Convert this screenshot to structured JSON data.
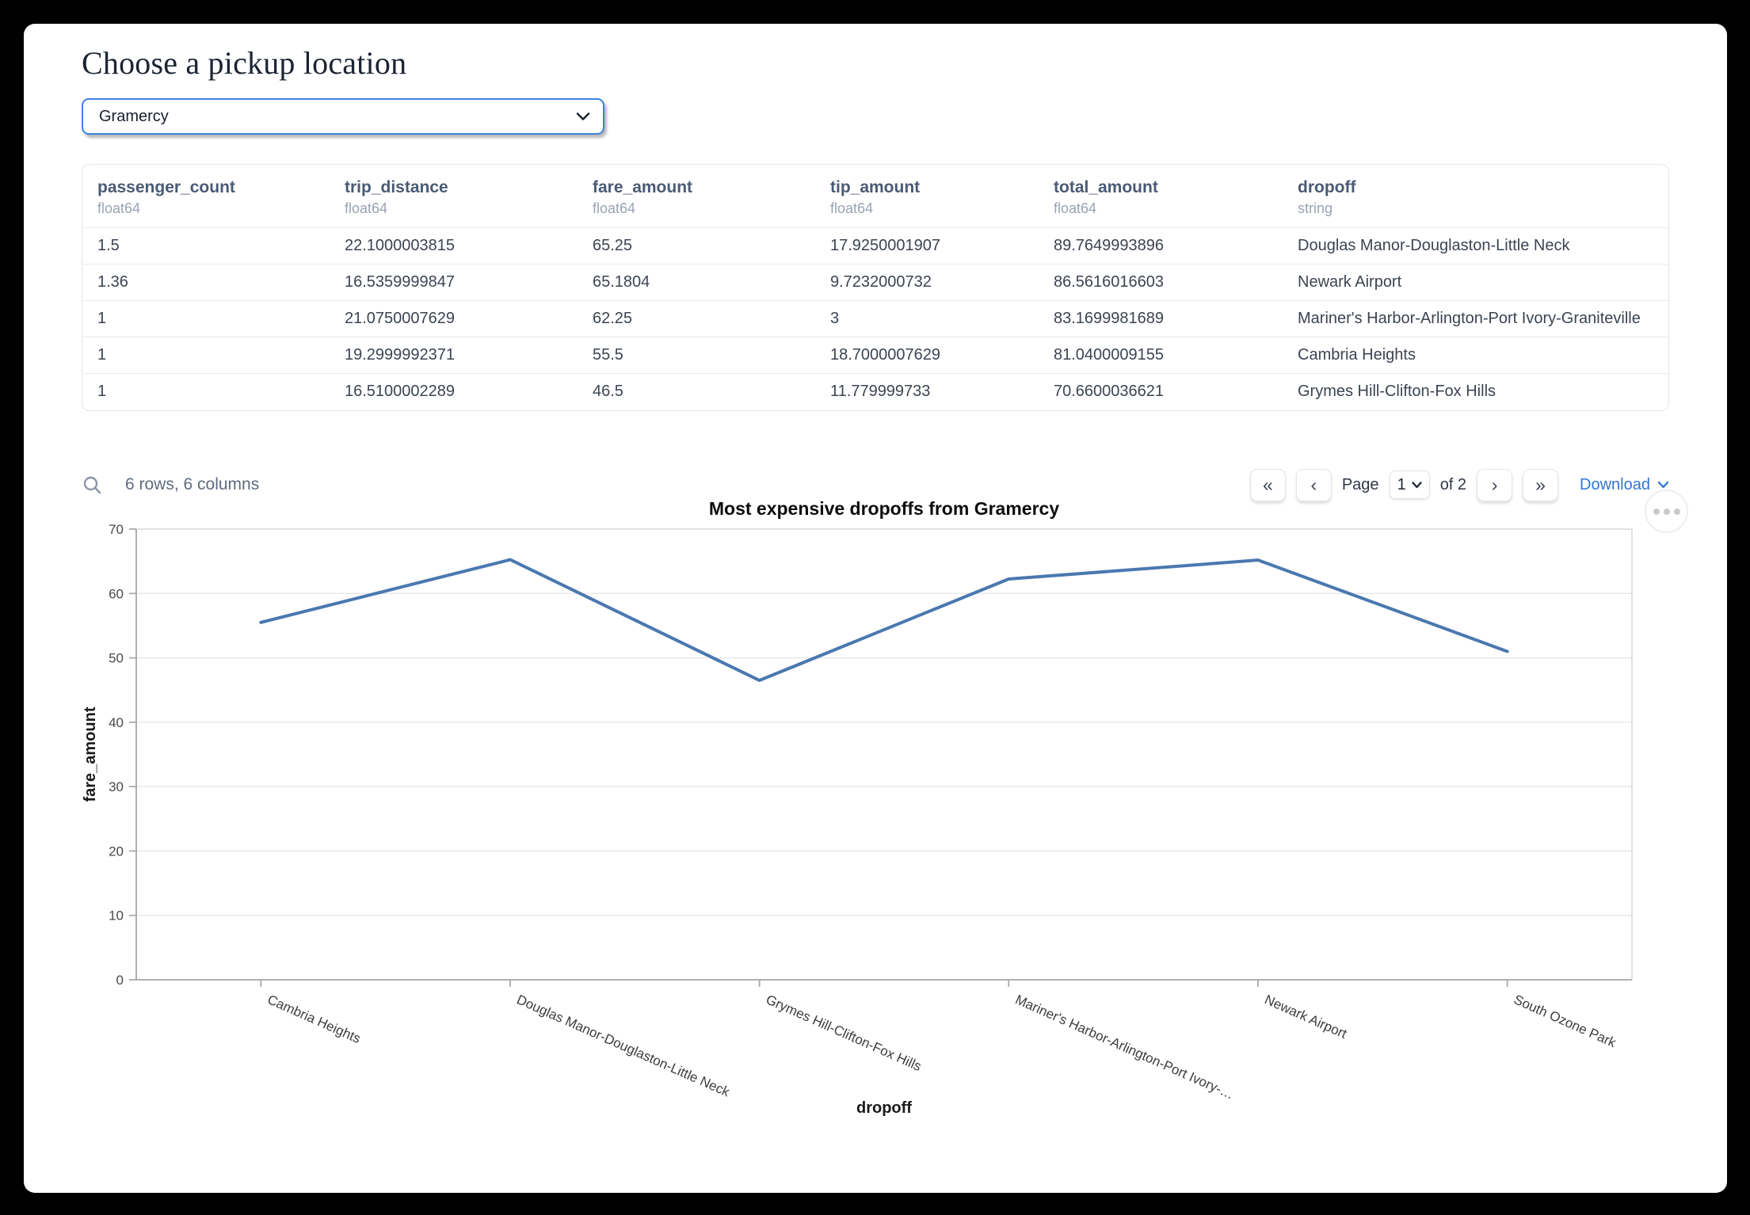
{
  "page": {
    "title": "Choose a pickup location"
  },
  "pickup_select": {
    "value": "Gramercy"
  },
  "table": {
    "columns": [
      {
        "name": "passenger_count",
        "type": "float64"
      },
      {
        "name": "trip_distance",
        "type": "float64"
      },
      {
        "name": "fare_amount",
        "type": "float64"
      },
      {
        "name": "tip_amount",
        "type": "float64"
      },
      {
        "name": "total_amount",
        "type": "float64"
      },
      {
        "name": "dropoff",
        "type": "string"
      }
    ],
    "rows": [
      [
        "1.5",
        "22.1000003815",
        "65.25",
        "17.9250001907",
        "89.7649993896",
        "Douglas Manor-Douglaston-Little Neck"
      ],
      [
        "1.36",
        "16.5359999847",
        "65.1804",
        "9.7232000732",
        "86.5616016603",
        "Newark Airport"
      ],
      [
        "1",
        "21.0750007629",
        "62.25",
        "3",
        "83.1699981689",
        "Mariner's Harbor-Arlington-Port Ivory-Graniteville"
      ],
      [
        "1",
        "19.2999992371",
        "55.5",
        "18.7000007629",
        "81.0400009155",
        "Cambria Heights"
      ],
      [
        "1",
        "16.5100002289",
        "46.5",
        "11.779999733",
        "70.6600036621",
        "Grymes Hill-Clifton-Fox Hills"
      ]
    ],
    "summary": "6 rows, 6 columns",
    "pagination": {
      "first_icon": "«",
      "prev_icon": "‹",
      "page_label": "Page",
      "current_page": "1",
      "of_label": "of 2",
      "next_icon": "›",
      "last_icon": "»"
    },
    "download_label": "Download"
  },
  "chart_data": {
    "type": "line",
    "title": "Most expensive dropoffs from Gramercy",
    "xlabel": "dropoff",
    "ylabel": "fare_amount",
    "categories": [
      "Cambria Heights",
      "Douglas Manor-Douglaston-Little Neck",
      "Grymes Hill-Clifton-Fox Hills",
      "Mariner's Harbor-Arlington-Port Ivory-…",
      "Newark Airport",
      "South Ozone Park"
    ],
    "values": [
      55.5,
      65.25,
      46.5,
      62.25,
      65.1804,
      51
    ],
    "ylim": [
      0,
      70
    ],
    "yticks": [
      0,
      10,
      20,
      30,
      40,
      50,
      60,
      70
    ],
    "grid": true,
    "legend": "none",
    "line_color": "#4a78b0"
  },
  "colors": {
    "accent_blue": "#3e84e0",
    "link_blue": "#3076d2",
    "line_blue": "#4a78b0",
    "header_text": "#4a5a74",
    "muted_text": "#9aa3b4"
  }
}
